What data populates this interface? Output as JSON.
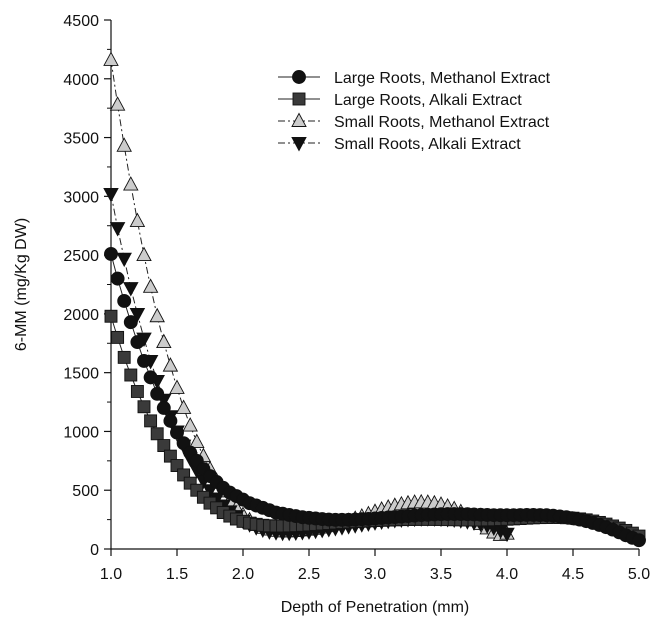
{
  "chart_data": {
    "type": "line",
    "title": "",
    "xlabel": "Depth of Penetration (mm)",
    "ylabel": "6-MM (mg/Kg DW)",
    "xlim": [
      1.0,
      5.0
    ],
    "ylim": [
      0,
      4500
    ],
    "xticks": [
      "1.0",
      "1.5",
      "2.0",
      "2.5",
      "3.0",
      "3.5",
      "4.0",
      "4.5",
      "5.0"
    ],
    "yticks": [
      "0",
      "500",
      "1000",
      "1500",
      "2000",
      "2500",
      "3000",
      "3500",
      "4000",
      "4500"
    ],
    "grid": false,
    "legend_position": "top-right",
    "series": [
      {
        "name": "Large Roots, Methanol Extract",
        "marker": "circle",
        "line": "solid",
        "marker_color": "#111111",
        "x": [
          1.0,
          1.05,
          1.1,
          1.15,
          1.2,
          1.25,
          1.3,
          1.35,
          1.4,
          1.45,
          1.5,
          1.55,
          1.6,
          1.65,
          1.7,
          1.75,
          1.8,
          1.85,
          1.9,
          1.95,
          2.0,
          2.05,
          2.1,
          2.15,
          2.2,
          2.25,
          2.3,
          2.35,
          2.4,
          2.45,
          2.5,
          2.55,
          2.6,
          2.65,
          2.7,
          2.75,
          2.8,
          2.85,
          2.9,
          2.95,
          3.0,
          3.05,
          3.1,
          3.15,
          3.2,
          3.25,
          3.3,
          3.35,
          3.4,
          3.45,
          3.5,
          3.55,
          3.6,
          3.65,
          3.7,
          3.75,
          3.8,
          3.85,
          3.9,
          3.95,
          4.0,
          4.05,
          4.1,
          4.15,
          4.2,
          4.25,
          4.3,
          4.35,
          4.4,
          4.45,
          4.5,
          4.55,
          4.6,
          4.65,
          4.7,
          4.75,
          4.8,
          4.85,
          4.9,
          4.95,
          5.0
        ],
        "y": [
          2510,
          2300,
          2110,
          1930,
          1760,
          1600,
          1460,
          1320,
          1200,
          1090,
          990,
          900,
          820,
          750,
          680,
          620,
          570,
          520,
          480,
          450,
          420,
          390,
          370,
          350,
          330,
          310,
          300,
          290,
          280,
          270,
          265,
          260,
          255,
          250,
          248,
          248,
          248,
          250,
          253,
          256,
          260,
          264,
          268,
          272,
          276,
          280,
          284,
          288,
          291,
          294,
          296,
          297,
          297,
          297,
          296,
          294,
          292,
          290,
          288,
          287,
          287,
          288,
          289,
          290,
          290,
          289,
          287,
          283,
          277,
          270,
          261,
          250,
          237,
          222,
          205,
          186,
          165,
          142,
          117,
          95,
          75
        ]
      },
      {
        "name": "Large Roots, Alkali Extract",
        "marker": "square",
        "line": "solid",
        "marker_color": "#3a3a3a",
        "x": [
          1.0,
          1.05,
          1.1,
          1.15,
          1.2,
          1.25,
          1.3,
          1.35,
          1.4,
          1.45,
          1.5,
          1.55,
          1.6,
          1.65,
          1.7,
          1.75,
          1.8,
          1.85,
          1.9,
          1.95,
          2.0,
          2.05,
          2.1,
          2.15,
          2.2,
          2.25,
          2.3,
          2.35,
          2.4,
          2.45,
          2.5,
          2.55,
          2.6,
          2.65,
          2.7,
          2.75,
          2.8,
          2.85,
          2.9,
          2.95,
          3.0,
          3.05,
          3.1,
          3.15,
          3.2,
          3.25,
          3.3,
          3.35,
          3.4,
          3.45,
          3.5,
          3.55,
          3.6,
          3.65,
          3.7,
          3.75,
          3.8,
          3.85,
          3.9,
          3.95,
          4.0,
          4.05,
          4.1,
          4.15,
          4.2,
          4.25,
          4.3,
          4.35,
          4.4,
          4.45,
          4.5,
          4.55,
          4.6,
          4.65,
          4.7,
          4.75,
          4.8,
          4.85,
          4.9,
          4.95,
          5.0
        ],
        "y": [
          1980,
          1800,
          1630,
          1480,
          1340,
          1210,
          1090,
          980,
          880,
          790,
          710,
          630,
          560,
          500,
          440,
          390,
          350,
          310,
          280,
          255,
          235,
          220,
          210,
          202,
          198,
          196,
          196,
          197,
          199,
          202,
          205,
          209,
          213,
          217,
          221,
          225,
          229,
          233,
          236,
          239,
          242,
          244,
          246,
          248,
          250,
          251,
          252,
          252,
          252,
          252,
          251,
          250,
          249,
          248,
          247,
          247,
          247,
          248,
          249,
          251,
          253,
          256,
          259,
          262,
          265,
          267,
          268,
          269,
          268,
          266,
          262,
          256,
          248,
          238,
          226,
          212,
          196,
          178,
          158,
          135,
          110
        ]
      },
      {
        "name": "Small Roots, Methanol Extract",
        "marker": "triangle-up",
        "line": "dashed",
        "marker_color": "#cccccc",
        "x": [
          1.0,
          1.05,
          1.1,
          1.15,
          1.2,
          1.25,
          1.3,
          1.35,
          1.4,
          1.45,
          1.5,
          1.55,
          1.6,
          1.65,
          1.7,
          1.75,
          1.8,
          1.85,
          1.9,
          1.95,
          2.0,
          2.05,
          2.1,
          2.15,
          2.2,
          2.25,
          2.3,
          2.35,
          2.4,
          2.45,
          2.5,
          2.55,
          2.6,
          2.65,
          2.7,
          2.75,
          2.8,
          2.85,
          2.9,
          2.95,
          3.0,
          3.05,
          3.1,
          3.15,
          3.2,
          3.25,
          3.3,
          3.35,
          3.4,
          3.45,
          3.5,
          3.55,
          3.6,
          3.65,
          3.7,
          3.75,
          3.8,
          3.85,
          3.9,
          3.95,
          4.0
        ],
        "y": [
          4160,
          3780,
          3430,
          3100,
          2790,
          2500,
          2230,
          1980,
          1760,
          1560,
          1370,
          1200,
          1050,
          910,
          790,
          680,
          580,
          490,
          410,
          350,
          290,
          245,
          205,
          180,
          165,
          155,
          150,
          150,
          153,
          158,
          164,
          172,
          182,
          194,
          208,
          223,
          240,
          258,
          277,
          297,
          317,
          336,
          353,
          368,
          380,
          389,
          395,
          397,
          395,
          389,
          378,
          362,
          341,
          315,
          284,
          250,
          213,
          175,
          140,
          120,
          130
        ]
      },
      {
        "name": "Small Roots, Alkali Extract",
        "marker": "triangle-down",
        "line": "dashed",
        "marker_color": "#111111",
        "x": [
          1.0,
          1.05,
          1.1,
          1.15,
          1.2,
          1.25,
          1.3,
          1.35,
          1.4,
          1.45,
          1.5,
          1.55,
          1.6,
          1.65,
          1.7,
          1.75,
          1.8,
          1.85,
          1.9,
          1.95,
          2.0,
          2.05,
          2.1,
          2.15,
          2.2,
          2.25,
          2.3,
          2.35,
          2.4,
          2.45,
          2.5,
          2.55,
          2.6,
          2.65,
          2.7,
          2.75,
          2.8,
          2.85,
          2.9,
          2.95,
          3.0,
          3.05,
          3.1,
          3.15,
          3.2,
          3.25,
          3.3,
          3.35,
          3.4,
          3.45,
          3.5,
          3.55,
          3.6,
          3.65,
          3.7,
          3.75,
          3.8,
          3.85,
          3.9,
          3.95,
          4.0
        ],
        "y": [
          3020,
          2730,
          2470,
          2220,
          2000,
          1790,
          1600,
          1430,
          1270,
          1130,
          1000,
          880,
          770,
          670,
          580,
          500,
          430,
          370,
          320,
          280,
          240,
          210,
          185,
          165,
          150,
          142,
          138,
          138,
          140,
          144,
          149,
          155,
          162,
          170,
          178,
          186,
          194,
          202,
          210,
          218,
          226,
          233,
          240,
          246,
          251,
          255,
          258,
          260,
          261,
          260,
          258,
          255,
          250,
          244,
          236,
          226,
          215,
          200,
          182,
          160,
          130
        ]
      }
    ]
  },
  "colors": {
    "axis": "#111111",
    "line": "#222222"
  }
}
